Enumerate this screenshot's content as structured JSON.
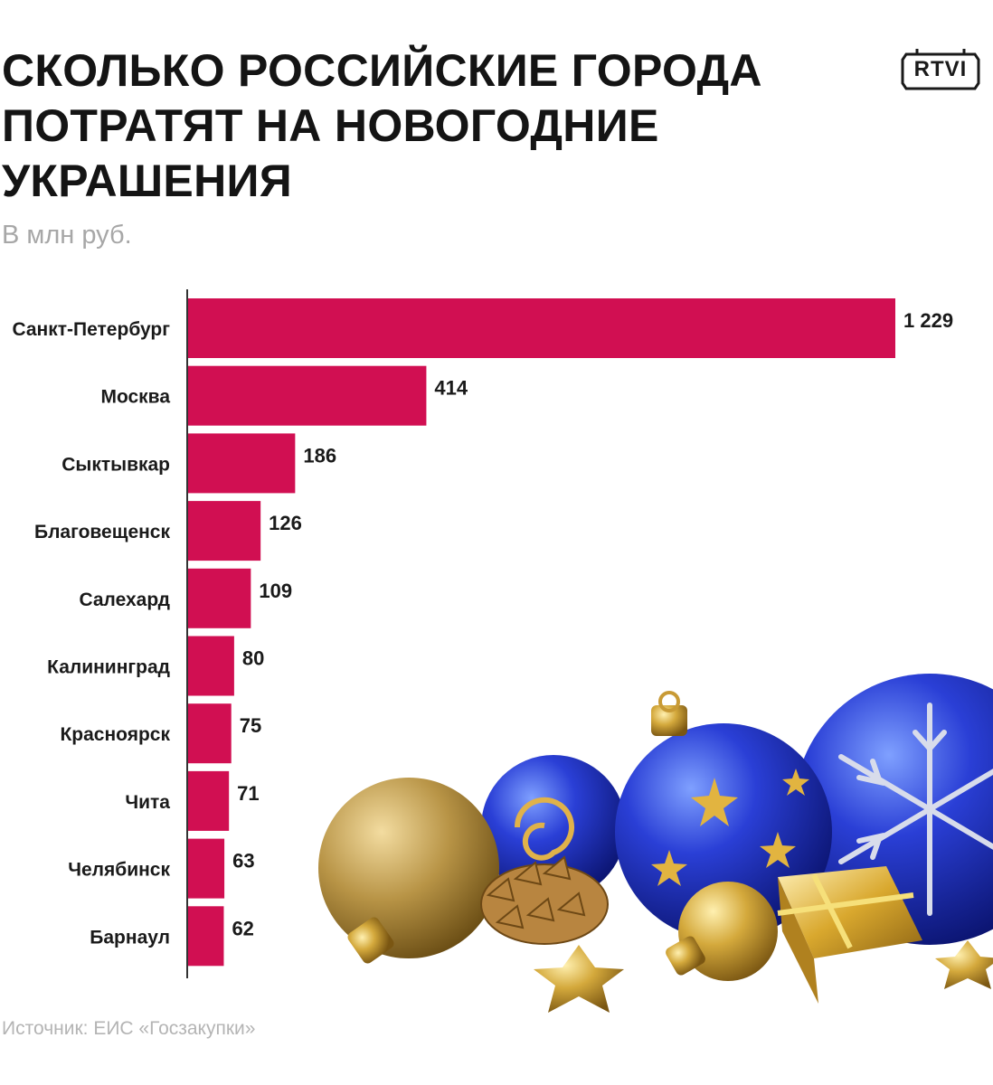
{
  "title": {
    "line1": "СКОЛЬКО РОССИЙСКИЕ ГОРОДА",
    "line2": "ПОТРАТЯТ НА НОВОГОДНИЕ",
    "line3": "УКРАШЕНИЯ"
  },
  "subtitle": "В млн руб.",
  "logo": {
    "text": "RTVI"
  },
  "source": "Источник: ЕИС «Госзакупки»",
  "colors": {
    "bar": "#d10f52",
    "axis": "#333333",
    "title": "#141414",
    "muted": "#a7a7a7"
  },
  "decoration": {
    "icon": "christmas-ornaments-image"
  },
  "chart_data": {
    "type": "bar",
    "orientation": "horizontal",
    "title": "СКОЛЬКО РОССИЙСКИЕ ГОРОДА ПОТРАТЯТ НА НОВОГОДНИЕ УКРАШЕНИЯ",
    "subtitle": "В млн руб.",
    "categories": [
      "Санкт-Петербург",
      "Москва",
      "Сыктывкар",
      "Благовещенск",
      "Салехард",
      "Калининград",
      "Красноярск",
      "Чита",
      "Челябинск",
      "Барнаул"
    ],
    "values": [
      1229,
      414,
      186,
      126,
      109,
      80,
      75,
      71,
      63,
      62
    ],
    "value_labels": [
      "1 229",
      "414",
      "186",
      "126",
      "109",
      "80",
      "75",
      "71",
      "63",
      "62"
    ],
    "xlim": [
      0,
      1229
    ],
    "grid": false,
    "legend": "none"
  }
}
